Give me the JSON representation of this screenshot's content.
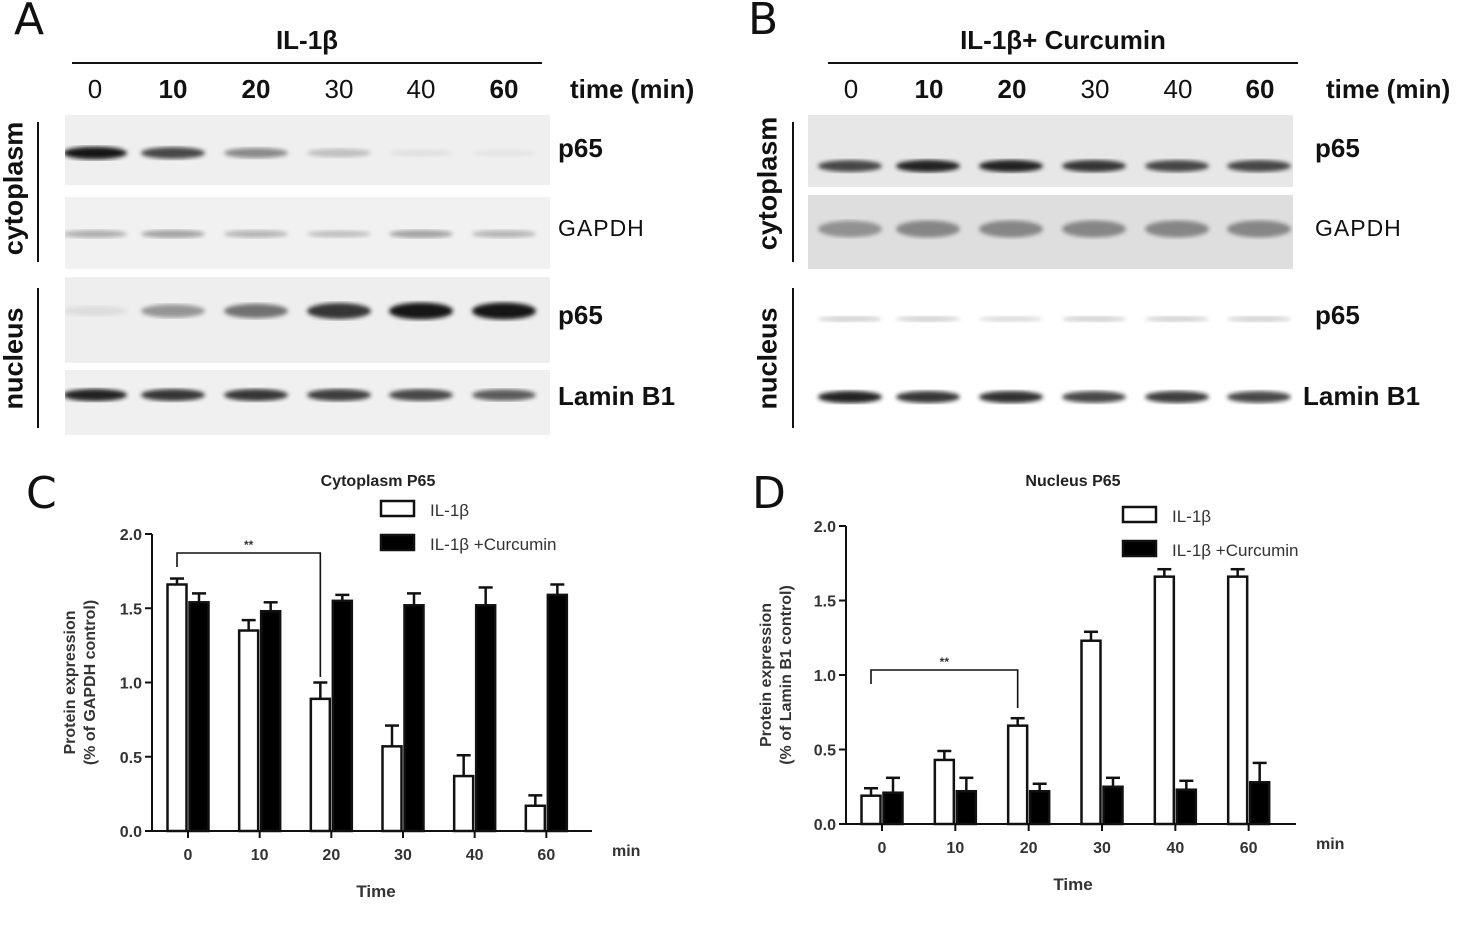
{
  "panels": {
    "A": {
      "letter": "A",
      "treatment": "IL-1β",
      "times": [
        "0",
        "10",
        "20",
        "30",
        "40",
        "60"
      ],
      "bold_times": [
        false,
        true,
        true,
        false,
        false,
        true
      ],
      "time_unit": "time (min)",
      "compartments": [
        "cytoplasm",
        "nucleus"
      ],
      "bands": [
        "p65",
        "GAPDH",
        "p65",
        "Lamin B1"
      ],
      "band_intensity": {
        "cyto_p65": [
          1.0,
          0.85,
          0.6,
          0.35,
          0.12,
          0.08
        ],
        "gapdh": [
          0.45,
          0.5,
          0.42,
          0.35,
          0.5,
          0.42
        ],
        "nuc_p65": [
          0.15,
          0.55,
          0.7,
          0.9,
          1.0,
          1.0
        ],
        "lamin": [
          0.95,
          0.9,
          0.9,
          0.88,
          0.85,
          0.78
        ]
      }
    },
    "B": {
      "letter": "B",
      "treatment": "IL-1β+ Curcumin",
      "times": [
        "0",
        "10",
        "20",
        "30",
        "40",
        "60"
      ],
      "bold_times": [
        false,
        true,
        true,
        false,
        false,
        true
      ],
      "time_unit": "time (min)",
      "compartments": [
        "cytoplasm",
        "nucleus"
      ],
      "bands": [
        "p65",
        "GAPDH",
        "p65",
        "Lamin B1"
      ],
      "band_intensity": {
        "cyto_p65": [
          0.85,
          0.95,
          0.95,
          0.9,
          0.85,
          0.85
        ],
        "gapdh": [
          0.55,
          0.6,
          0.6,
          0.6,
          0.6,
          0.6
        ],
        "nuc_p65": [
          0.3,
          0.3,
          0.25,
          0.3,
          0.3,
          0.3
        ],
        "lamin": [
          0.95,
          0.9,
          0.92,
          0.85,
          0.88,
          0.85
        ]
      }
    }
  },
  "chart_data": [
    {
      "type": "bar",
      "letter": "C",
      "title": "Cytoplasm P65",
      "categories": [
        "0",
        "10",
        "20",
        "30",
        "40",
        "60"
      ],
      "x_unit": "min",
      "xlabel": "Time",
      "ylabel_line1": "Protein expression",
      "ylabel_line2": "(% of GAPDH control)",
      "ylim": [
        0,
        2.0
      ],
      "yticks": [
        "0.0",
        "0.5",
        "1.0",
        "1.5",
        "2.0"
      ],
      "series": [
        {
          "name": "IL-1β",
          "fill": "#ffffff",
          "values": [
            1.66,
            1.35,
            0.89,
            0.57,
            0.37,
            0.17
          ],
          "err": [
            0.04,
            0.07,
            0.11,
            0.14,
            0.14,
            0.07
          ]
        },
        {
          "name": "IL-1β +Curcumin",
          "fill": "#000000",
          "values": [
            1.54,
            1.48,
            1.55,
            1.52,
            1.52,
            1.59
          ],
          "err": [
            0.06,
            0.06,
            0.04,
            0.08,
            0.12,
            0.07
          ]
        }
      ],
      "significance": {
        "label": "**",
        "from": 0,
        "to": 2
      }
    },
    {
      "type": "bar",
      "letter": "D",
      "title": "Nucleus P65",
      "categories": [
        "0",
        "10",
        "20",
        "30",
        "40",
        "60"
      ],
      "x_unit": "min",
      "xlabel": "Time",
      "ylabel_line1": "Protein expression",
      "ylabel_line2": "(% of Lamin B1 control)",
      "ylim": [
        0,
        2.0
      ],
      "yticks": [
        "0.0",
        "0.5",
        "1.0",
        "1.5",
        "2.0"
      ],
      "series": [
        {
          "name": "IL-1β",
          "fill": "#ffffff",
          "values": [
            0.19,
            0.43,
            0.66,
            1.23,
            1.66,
            1.66
          ],
          "err": [
            0.05,
            0.06,
            0.05,
            0.06,
            0.05,
            0.05
          ]
        },
        {
          "name": "IL-1β +Curcumin",
          "fill": "#000000",
          "values": [
            0.21,
            0.22,
            0.22,
            0.25,
            0.23,
            0.28
          ],
          "err": [
            0.1,
            0.09,
            0.05,
            0.06,
            0.06,
            0.13
          ]
        }
      ],
      "significance": {
        "label": "**",
        "from": 0,
        "to": 2
      }
    }
  ]
}
